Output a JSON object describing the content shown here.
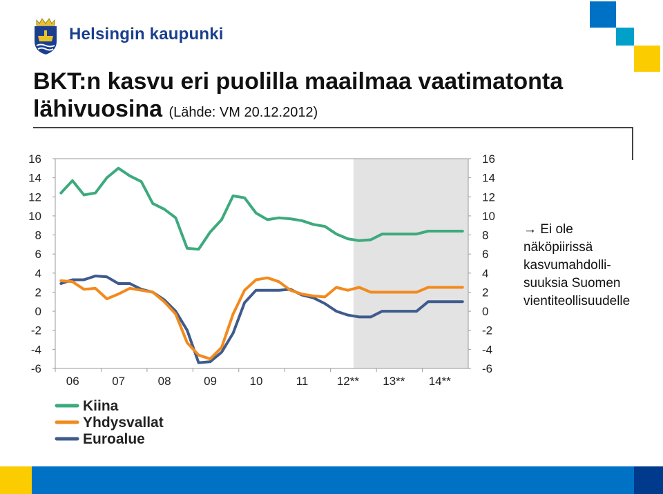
{
  "header": {
    "logo_text": "Helsingin kaupunki",
    "crest_icon": "helsinki-crest-icon"
  },
  "slide": {
    "title_main": "BKT:n kasvu eri puolilla maailmaa vaatimatonta lähivuosina",
    "title_source": "(Lähde: VM 20.12.2012)",
    "note_lines": [
      "→ Ei ole",
      "näköpiirissä",
      "kasvumahdolli-",
      "suuksia Suomen",
      "vientiteollisuudelle"
    ]
  },
  "colors": {
    "Kiina": "#3daa7d",
    "Yhdysvallat": "#f28a1d",
    "Euroalue": "#3f5b8c",
    "forecast_band": "#e3e3e3",
    "brand_blue": "#0072c6",
    "brand_yellow": "#fbcd00"
  },
  "chart_data": {
    "type": "line",
    "x_tick_labels": [
      "06",
      "07",
      "08",
      "09",
      "10",
      "11",
      "12**",
      "13**",
      "14**"
    ],
    "x_quarters": [
      "2006Q1",
      "2006Q2",
      "2006Q3",
      "2006Q4",
      "2007Q1",
      "2007Q2",
      "2007Q3",
      "2007Q4",
      "2008Q1",
      "2008Q2",
      "2008Q3",
      "2008Q4",
      "2009Q1",
      "2009Q2",
      "2009Q3",
      "2009Q4",
      "2010Q1",
      "2010Q2",
      "2010Q3",
      "2010Q4",
      "2011Q1",
      "2011Q2",
      "2011Q3",
      "2011Q4",
      "2012Q1",
      "2012Q2",
      "2012Q3",
      "2012Q4",
      "2013Q1",
      "2013Q2",
      "2013Q3",
      "2013Q4",
      "2014Q1",
      "2014Q2",
      "2014Q3",
      "2014Q4"
    ],
    "forecast_start": "2012Q3",
    "ylim": [
      -6,
      16
    ],
    "yticks": [
      16,
      14,
      12,
      10,
      8,
      6,
      4,
      2,
      0,
      -2,
      -4,
      -6
    ],
    "grid": false,
    "legend_position": "bottom-left",
    "series": [
      {
        "name": "Kiina",
        "values": [
          12.4,
          13.7,
          12.2,
          12.4,
          14.0,
          15.0,
          14.2,
          13.6,
          11.3,
          10.7,
          9.8,
          6.6,
          6.5,
          8.3,
          9.6,
          12.1,
          11.9,
          10.3,
          9.6,
          9.8,
          9.7,
          9.5,
          9.1,
          8.9,
          8.1,
          7.6,
          7.4,
          7.5,
          8.1,
          8.1,
          8.1,
          8.1,
          8.4,
          8.4,
          8.4,
          8.4
        ]
      },
      {
        "name": "Yhdysvallat",
        "values": [
          3.2,
          3.1,
          2.3,
          2.4,
          1.3,
          1.8,
          2.4,
          2.2,
          2.0,
          1.0,
          -0.3,
          -3.3,
          -4.6,
          -5.0,
          -3.8,
          -0.3,
          2.2,
          3.3,
          3.5,
          3.1,
          2.2,
          1.8,
          1.6,
          1.5,
          2.5,
          2.2,
          2.5,
          2.0,
          2.0,
          2.0,
          2.0,
          2.0,
          2.5,
          2.5,
          2.5,
          2.5
        ]
      },
      {
        "name": "Euroalue",
        "values": [
          2.9,
          3.3,
          3.3,
          3.7,
          3.6,
          2.9,
          2.9,
          2.3,
          2.0,
          1.2,
          0.0,
          -2.0,
          -5.4,
          -5.3,
          -4.3,
          -2.3,
          0.9,
          2.2,
          2.2,
          2.2,
          2.3,
          1.7,
          1.4,
          0.8,
          0.0,
          -0.4,
          -0.6,
          -0.6,
          0.0,
          0.0,
          0.0,
          0.0,
          1.0,
          1.0,
          1.0,
          1.0
        ]
      }
    ]
  }
}
